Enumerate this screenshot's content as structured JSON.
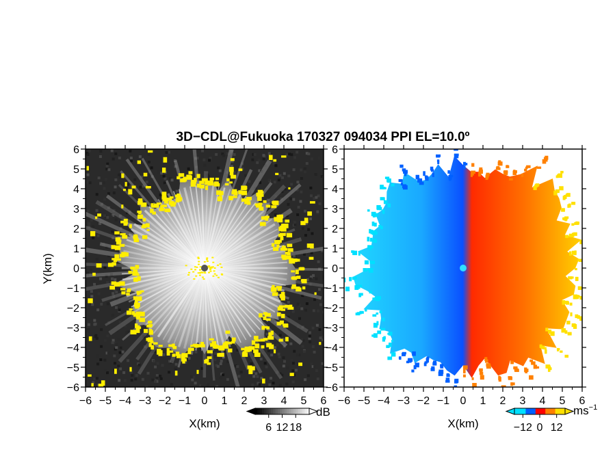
{
  "chart_data": {
    "type": "heatmap",
    "title": "3D−CDL@Fukuoka 170327 094034 PPI EL=10.0º",
    "panels": [
      {
        "name": "",
        "xlabel": "X(km)",
        "ylabel": "Y(km)",
        "xlim": [
          -6,
          6
        ],
        "ylim": [
          -6,
          6
        ],
        "ticks": [
          "−6",
          "−5",
          "−4",
          "−3",
          "−2",
          "−1",
          "0",
          "1",
          "2",
          "3",
          "4",
          "5",
          "6"
        ],
        "tick_values": [
          -6,
          -5,
          -4,
          -3,
          -2,
          -1,
          0,
          1,
          2,
          3,
          4,
          5,
          6
        ],
        "colorbar": {
          "unit": "dB",
          "tick_labels": [
            "6",
            "12",
            "18"
          ],
          "tick_values": [
            6,
            12,
            18
          ],
          "range": [
            0,
            24
          ],
          "colors": [
            "#000000",
            "#ffffff"
          ],
          "highlight_color": "#ffee00"
        }
      },
      {
        "name": "",
        "xlabel": "X(km)",
        "ylabel": "",
        "xlim": [
          -6,
          6
        ],
        "ylim": [
          -6,
          6
        ],
        "ticks": [
          "−6",
          "−5",
          "−4",
          "−3",
          "−2",
          "−1",
          "0",
          "1",
          "2",
          "3",
          "4",
          "5",
          "6"
        ],
        "tick_values": [
          -6,
          -5,
          -4,
          -3,
          -2,
          -1,
          0,
          1,
          2,
          3,
          4,
          5,
          6
        ],
        "colorbar": {
          "unit": "ms",
          "unit_exponent": "−1",
          "tick_labels": [
            "−12",
            "0",
            "12"
          ],
          "tick_values": [
            -12,
            0,
            12
          ],
          "range": [
            -18,
            18
          ],
          "colors": [
            "#00e0ff",
            "#0060ff",
            "#ff0000",
            "#ff8000",
            "#ffe000"
          ]
        }
      }
    ],
    "echo_radius_km": 4.4,
    "grid": false
  }
}
